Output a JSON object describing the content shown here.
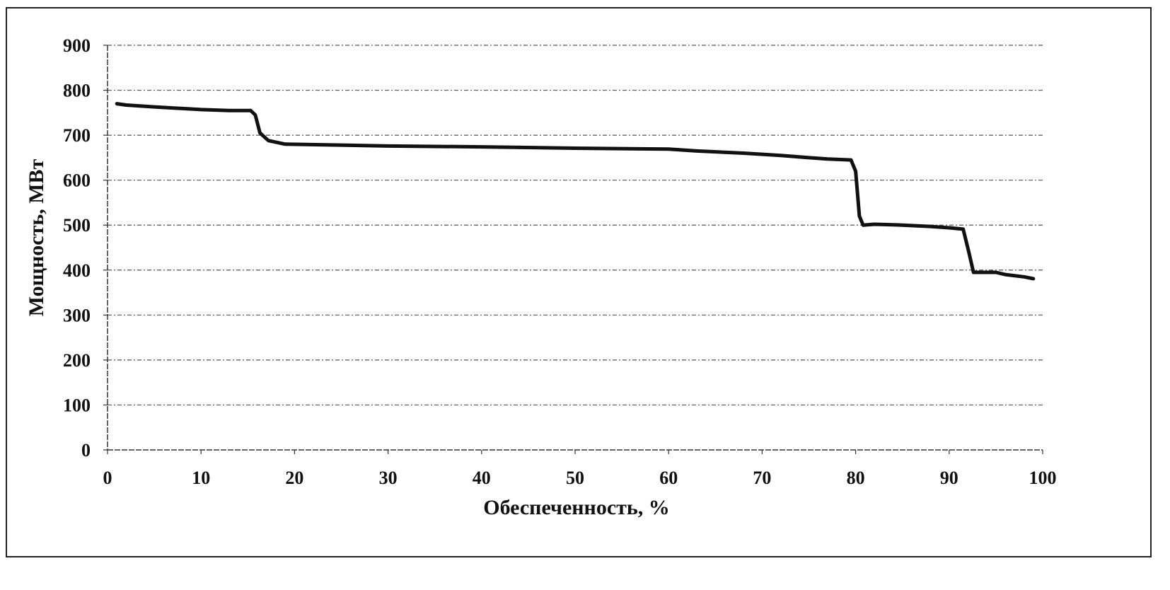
{
  "chart_data": {
    "type": "line",
    "title": "",
    "xlabel": "Обеспеченность, %",
    "ylabel": "Мощность, МВт",
    "xlim": [
      0,
      100
    ],
    "ylim": [
      0,
      900
    ],
    "x_ticks": [
      "0",
      "10",
      "20",
      "30",
      "40",
      "50",
      "60",
      "70",
      "80",
      "90",
      "100"
    ],
    "y_ticks": [
      "0",
      "100",
      "200",
      "300",
      "400",
      "500",
      "600",
      "700",
      "800",
      "900"
    ],
    "grid": true,
    "legend": "none",
    "line_color": "#111111",
    "series": [
      {
        "x": [
          1,
          2,
          5,
          10,
          13,
          15.3,
          15.8,
          16.3,
          17.2,
          19,
          25,
          30,
          40,
          50,
          60,
          63,
          68,
          72,
          75,
          77,
          79.5,
          80,
          80.4,
          80.8,
          82,
          85,
          88,
          90,
          91.5,
          92.1,
          92.6,
          95,
          96,
          98,
          99
        ],
        "y": [
          770,
          767,
          763,
          757,
          755,
          755,
          745,
          705,
          688,
          680,
          678,
          676,
          674,
          671,
          669,
          665,
          660,
          655,
          650,
          647,
          645,
          620,
          520,
          500,
          502,
          500,
          497,
          494,
          491,
          440,
          395,
          395,
          390,
          385,
          381
        ]
      }
    ]
  }
}
